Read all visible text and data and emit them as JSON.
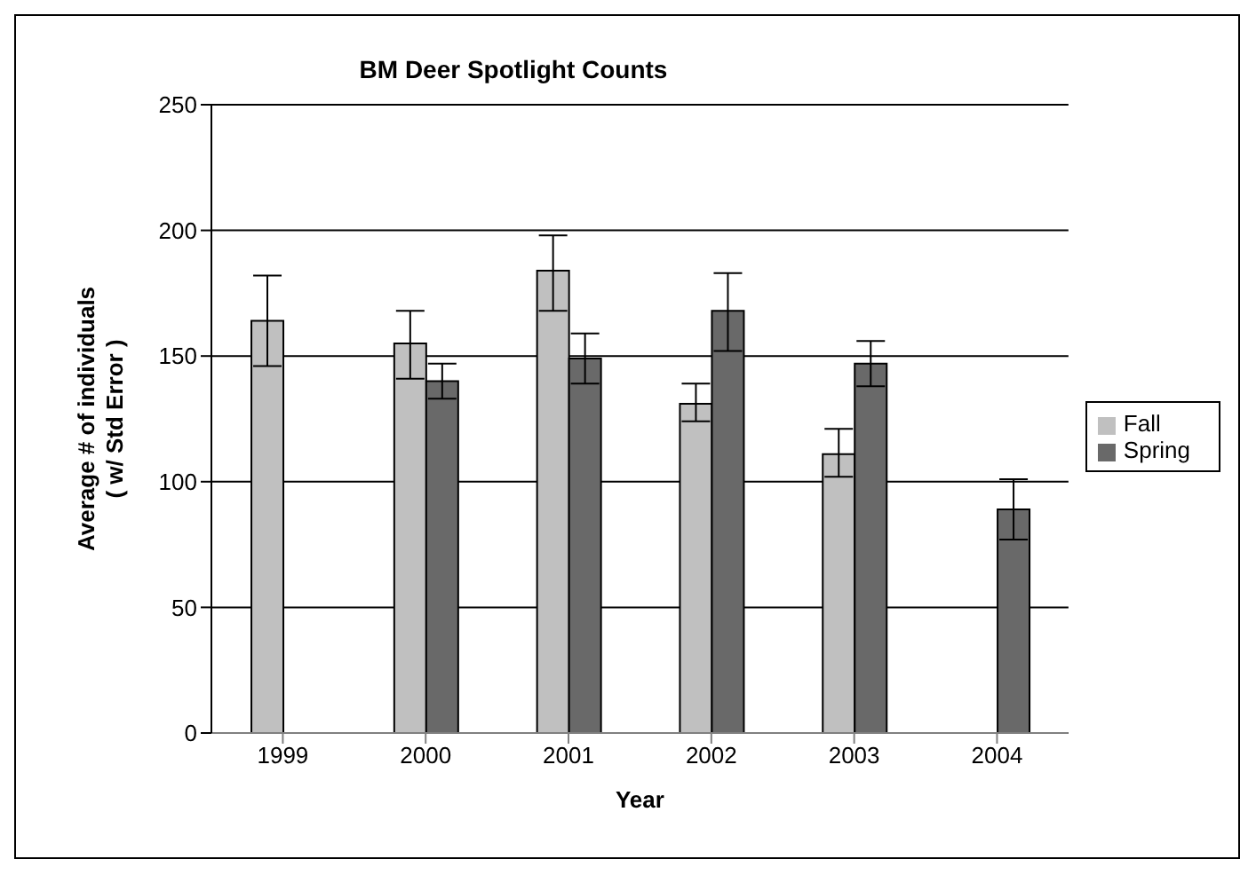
{
  "chart_data": {
    "type": "bar",
    "title": "BM Deer Spotlight Counts",
    "xlabel": "Year",
    "ylabel": "Average # of individuals\n( w/ Std Error )",
    "categories": [
      "1999",
      "2000",
      "2001",
      "2002",
      "2003",
      "2004"
    ],
    "series": [
      {
        "name": "Fall",
        "color": "#c0c0c0",
        "values": [
          164,
          155,
          184,
          131,
          111,
          null
        ],
        "errors": [
          [
            146,
            182
          ],
          [
            141,
            168
          ],
          [
            168,
            198
          ],
          [
            124,
            139
          ],
          [
            102,
            121
          ],
          null
        ]
      },
      {
        "name": "Spring",
        "color": "#696969",
        "values": [
          null,
          140,
          149,
          168,
          147,
          89
        ],
        "errors": [
          null,
          [
            133,
            147
          ],
          [
            139,
            159
          ],
          [
            152,
            183
          ],
          [
            138,
            156
          ],
          [
            77,
            101
          ]
        ]
      }
    ],
    "ylim": [
      0,
      250
    ],
    "yticks": [
      0,
      50,
      100,
      150,
      200,
      250
    ],
    "grid": "y",
    "legend": "right"
  }
}
